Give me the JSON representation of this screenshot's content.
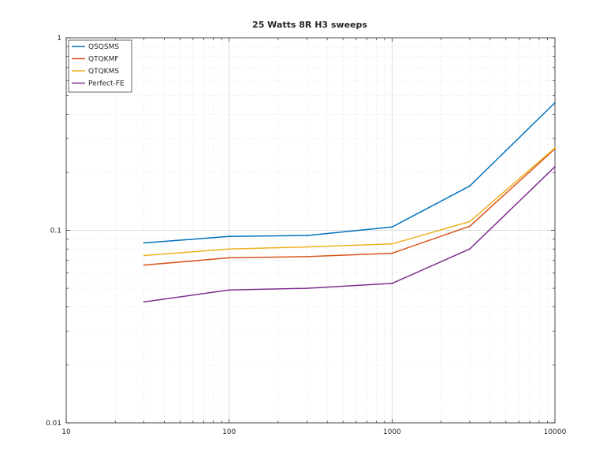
{
  "chart_data": {
    "type": "line",
    "title": "25 Watts 8R H3 sweeps",
    "xlabel": "",
    "ylabel": "",
    "xscale": "log",
    "yscale": "log",
    "xlim": [
      10,
      10000
    ],
    "ylim": [
      0.01,
      1
    ],
    "xticks": [
      10,
      100,
      1000,
      10000
    ],
    "xtick_labels": [
      "10",
      "100",
      "1000",
      "10000"
    ],
    "yticks": [
      0.01,
      0.1,
      1
    ],
    "ytick_labels": [
      "0.01",
      "0.1",
      "1"
    ],
    "grid": true,
    "legend_position": "top-left",
    "x": [
      30,
      100,
      300,
      1000,
      3000,
      10000
    ],
    "series": [
      {
        "name": "QSQSMS",
        "color": "#0072BD",
        "values": [
          0.086,
          0.093,
          0.094,
          0.104,
          0.17,
          0.46
        ]
      },
      {
        "name": "QTQKMF",
        "color": "#D95319",
        "values": [
          0.066,
          0.072,
          0.073,
          0.076,
          0.105,
          0.265
        ]
      },
      {
        "name": "QTQKMS",
        "color": "#EDB120",
        "values": [
          0.074,
          0.08,
          0.082,
          0.085,
          0.111,
          0.268
        ]
      },
      {
        "name": "Perfect-FE",
        "color": "#7E2F8E",
        "values": [
          0.0425,
          0.049,
          0.05,
          0.053,
          0.08,
          0.214
        ]
      }
    ]
  }
}
